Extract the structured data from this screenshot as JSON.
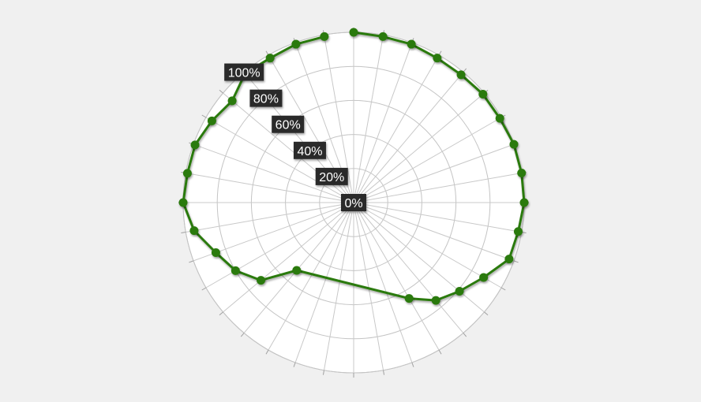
{
  "chart_data": {
    "type": "polar-line",
    "radial_ticks": [
      "0%",
      "20%",
      "40%",
      "60%",
      "80%",
      "100%"
    ],
    "radial_range": [
      0,
      100
    ],
    "angular_divisions": 36,
    "grid": true,
    "series": [
      {
        "color": "#2a7a0a",
        "points": [
          {
            "angle": 0,
            "value": 100
          },
          {
            "angle": 10,
            "value": 99
          },
          {
            "angle": 20,
            "value": 99
          },
          {
            "angle": 30,
            "value": 98
          },
          {
            "angle": 40,
            "value": 98
          },
          {
            "angle": 50,
            "value": 99
          },
          {
            "angle": 60,
            "value": 99
          },
          {
            "angle": 70,
            "value": 100
          },
          {
            "angle": 80,
            "value": 100
          },
          {
            "angle": 90,
            "value": 100
          },
          {
            "angle": 100,
            "value": 98
          },
          {
            "angle": 110,
            "value": 97
          },
          {
            "angle": 120,
            "value": 88
          },
          {
            "angle": 130,
            "value": 81
          },
          {
            "angle": 140,
            "value": 75
          },
          {
            "angle": 150,
            "value": 65
          },
          {
            "angle": 220,
            "value": 52
          },
          {
            "angle": 230,
            "value": 71
          },
          {
            "angle": 240,
            "value": 80
          },
          {
            "angle": 250,
            "value": 86
          },
          {
            "angle": 260,
            "value": 95
          },
          {
            "angle": 270,
            "value": 100
          },
          {
            "angle": 280,
            "value": 99
          },
          {
            "angle": 290,
            "value": 99
          },
          {
            "angle": 300,
            "value": 96
          },
          {
            "angle": 310,
            "value": 93
          },
          {
            "angle": 320,
            "value": 99
          },
          {
            "angle": 330,
            "value": 98
          },
          {
            "angle": 340,
            "value": 99
          },
          {
            "angle": 350,
            "value": 99
          }
        ]
      }
    ]
  }
}
